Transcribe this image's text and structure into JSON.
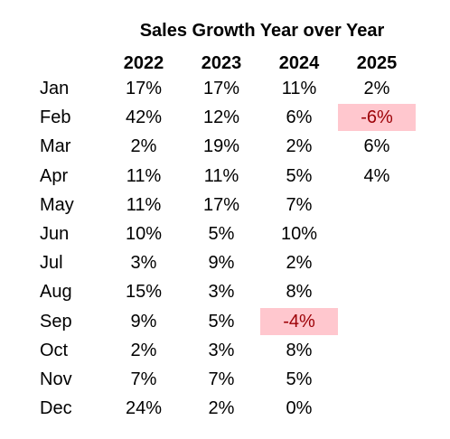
{
  "colors": {
    "negative_fill": "#ffc7ce",
    "negative_text": "#9c0006"
  },
  "chart_data": {
    "type": "table",
    "title": "Sales Growth Year over Year",
    "columns": [
      "2022",
      "2023",
      "2024",
      "2025"
    ],
    "rows": [
      {
        "label": "Jan",
        "values": [
          "17%",
          "17%",
          "11%",
          "2%"
        ]
      },
      {
        "label": "Feb",
        "values": [
          "42%",
          "12%",
          "6%",
          "-6%"
        ]
      },
      {
        "label": "Mar",
        "values": [
          "2%",
          "19%",
          "2%",
          "6%"
        ]
      },
      {
        "label": "Apr",
        "values": [
          "11%",
          "11%",
          "5%",
          "4%"
        ]
      },
      {
        "label": "May",
        "values": [
          "11%",
          "17%",
          "7%",
          ""
        ]
      },
      {
        "label": "Jun",
        "values": [
          "10%",
          "5%",
          "10%",
          ""
        ]
      },
      {
        "label": "Jul",
        "values": [
          "3%",
          "9%",
          "2%",
          ""
        ]
      },
      {
        "label": "Aug",
        "values": [
          "15%",
          "3%",
          "8%",
          ""
        ]
      },
      {
        "label": "Sep",
        "values": [
          "9%",
          "5%",
          "-4%",
          ""
        ]
      },
      {
        "label": "Oct",
        "values": [
          "2%",
          "3%",
          "8%",
          ""
        ]
      },
      {
        "label": "Nov",
        "values": [
          "7%",
          "7%",
          "5%",
          ""
        ]
      },
      {
        "label": "Dec",
        "values": [
          "24%",
          "2%",
          "0%",
          ""
        ]
      }
    ]
  }
}
